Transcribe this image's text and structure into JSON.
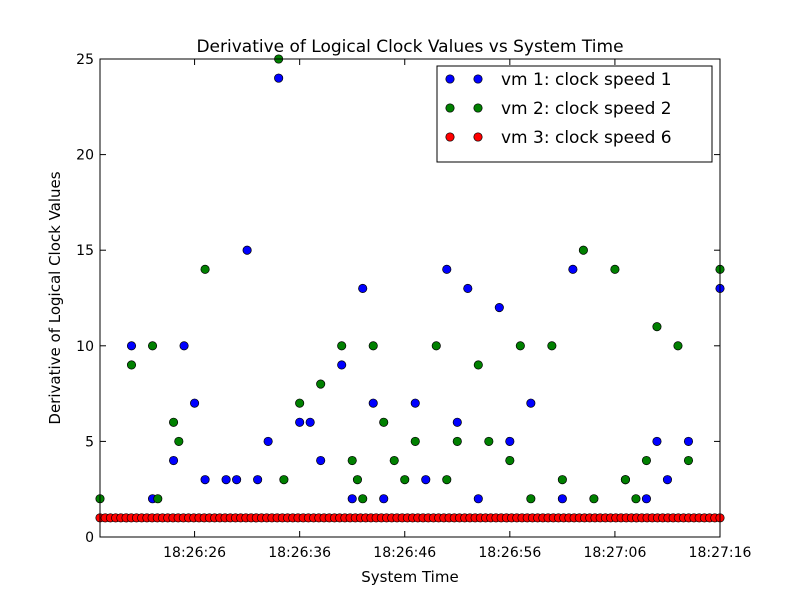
{
  "chart_data": {
    "type": "scatter",
    "title": "Derivative of Logical Clock Values vs System Time",
    "xlabel": "System Time",
    "ylabel": "Derivative of Logical Clock Values",
    "xlim": [
      "18:26:17",
      "18:27:16"
    ],
    "ylim": [
      0,
      25
    ],
    "x_ticks": [
      "18:26:26",
      "18:26:36",
      "18:26:46",
      "18:26:56",
      "18:27:06",
      "18:27:16"
    ],
    "y_ticks": [
      0,
      5,
      10,
      15,
      20,
      25
    ],
    "grid": false,
    "legend_position": "upper-right",
    "series": [
      {
        "name": "vm 1: clock speed 1",
        "color": "#0000ff",
        "points": [
          [
            "18:26:20",
            10
          ],
          [
            "18:26:22",
            2
          ],
          [
            "18:26:24",
            4
          ],
          [
            "18:26:25",
            10
          ],
          [
            "18:26:26",
            7
          ],
          [
            "18:26:27",
            3
          ],
          [
            "18:26:29",
            3
          ],
          [
            "18:26:30",
            3
          ],
          [
            "18:26:31",
            15
          ],
          [
            "18:26:32",
            3
          ],
          [
            "18:26:33",
            5
          ],
          [
            "18:26:34",
            24
          ],
          [
            "18:26:36",
            6
          ],
          [
            "18:26:37",
            6
          ],
          [
            "18:26:38",
            4
          ],
          [
            "18:26:40",
            9
          ],
          [
            "18:26:41",
            2
          ],
          [
            "18:26:42",
            13
          ],
          [
            "18:26:43",
            7
          ],
          [
            "18:26:44",
            2
          ],
          [
            "18:26:47",
            7
          ],
          [
            "18:26:48",
            3
          ],
          [
            "18:26:50",
            14
          ],
          [
            "18:26:51",
            6
          ],
          [
            "18:26:52",
            13
          ],
          [
            "18:26:53",
            2
          ],
          [
            "18:26:55",
            12
          ],
          [
            "18:26:56",
            5
          ],
          [
            "18:26:58",
            7
          ],
          [
            "18:27:01",
            2
          ],
          [
            "18:27:02",
            14
          ],
          [
            "18:27:07",
            3
          ],
          [
            "18:27:09",
            2
          ],
          [
            "18:27:10",
            5
          ],
          [
            "18:27:11",
            3
          ],
          [
            "18:27:13",
            5
          ],
          [
            "18:27:16",
            13
          ]
        ]
      },
      {
        "name": "vm 2: clock speed 2",
        "color": "#008000",
        "points": [
          [
            "18:26:17",
            2
          ],
          [
            "18:26:20",
            9
          ],
          [
            "18:26:22",
            10
          ],
          [
            "18:26:22.5",
            2
          ],
          [
            "18:26:24",
            6
          ],
          [
            "18:26:24.5",
            5
          ],
          [
            "18:26:27",
            14
          ],
          [
            "18:26:34",
            25
          ],
          [
            "18:26:34.5",
            3
          ],
          [
            "18:26:36",
            7
          ],
          [
            "18:26:38",
            8
          ],
          [
            "18:26:40",
            10
          ],
          [
            "18:26:41",
            4
          ],
          [
            "18:26:41.5",
            3
          ],
          [
            "18:26:42",
            2
          ],
          [
            "18:26:43",
            10
          ],
          [
            "18:26:44",
            6
          ],
          [
            "18:26:45",
            4
          ],
          [
            "18:26:46",
            3
          ],
          [
            "18:26:47",
            5
          ],
          [
            "18:26:49",
            10
          ],
          [
            "18:26:50",
            3
          ],
          [
            "18:26:51",
            5
          ],
          [
            "18:26:53",
            9
          ],
          [
            "18:26:54",
            5
          ],
          [
            "18:26:56",
            4
          ],
          [
            "18:26:57",
            10
          ],
          [
            "18:26:58",
            2
          ],
          [
            "18:27:00",
            10
          ],
          [
            "18:27:01",
            3
          ],
          [
            "18:27:03",
            15
          ],
          [
            "18:27:04",
            2
          ],
          [
            "18:27:06",
            14
          ],
          [
            "18:27:07",
            3
          ],
          [
            "18:27:08",
            2
          ],
          [
            "18:27:09",
            4
          ],
          [
            "18:27:10",
            11
          ],
          [
            "18:27:12",
            10
          ],
          [
            "18:27:13",
            4
          ],
          [
            "18:27:16",
            14
          ]
        ]
      },
      {
        "name": "vm 3: clock speed 6",
        "color": "#ff0000",
        "points_constant": {
          "y": 1,
          "x_start": "18:26:17",
          "x_end": "18:27:16",
          "count": 120
        }
      }
    ]
  }
}
